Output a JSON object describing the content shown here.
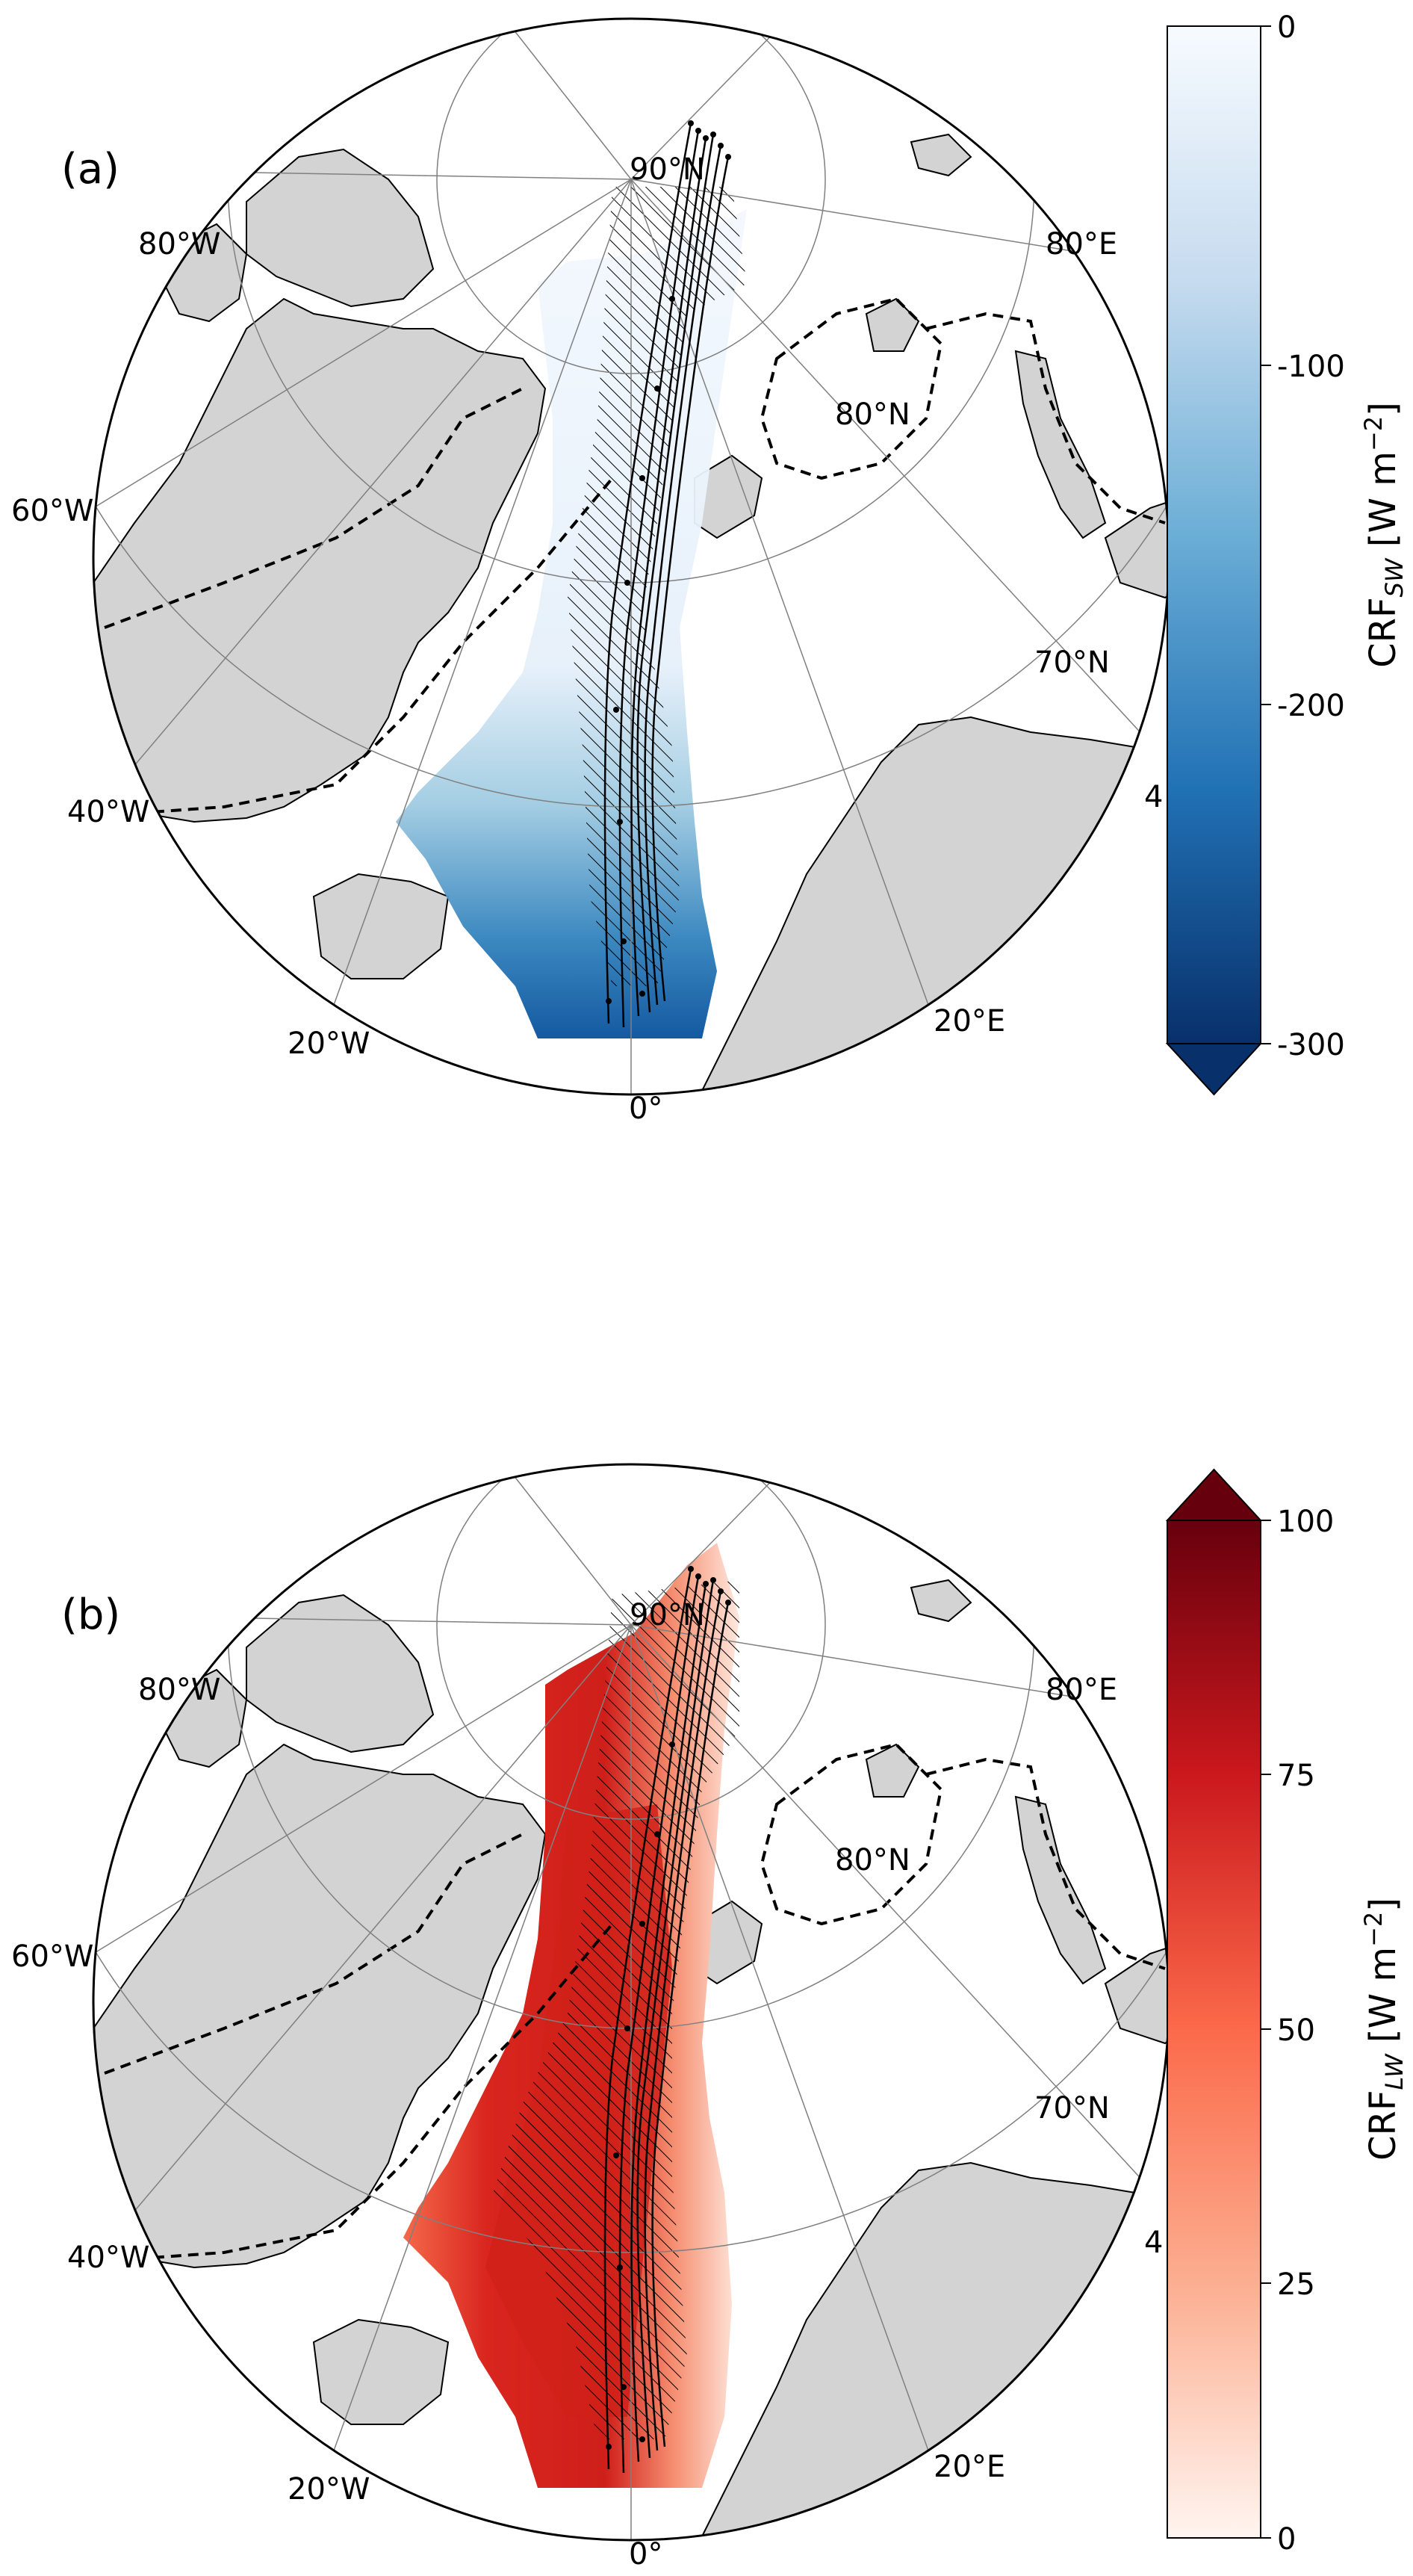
{
  "panels": [
    {
      "label": "(a)",
      "colorbar": {
        "title_base": "CRF",
        "title_sub": "SW",
        "title_unit": " [W m",
        "title_sup": "−2",
        "title_close": "]",
        "ticks": [
          "0",
          "-100",
          "-200",
          "-300"
        ],
        "extend": "min",
        "colors": [
          "#f7fbff",
          "#c6dbef",
          "#6baed6",
          "#2171b5",
          "#08306b"
        ]
      }
    },
    {
      "label": "(b)",
      "colorbar": {
        "title_base": "CRF",
        "title_sub": "LW",
        "title_unit": " [W m",
        "title_sup": "−2",
        "title_close": "]",
        "ticks": [
          "100",
          "75",
          "50",
          "25",
          "0"
        ],
        "extend": "max",
        "colors": [
          "#fff5f0",
          "#fcae91",
          "#fb6a4a",
          "#cb181d",
          "#67000d"
        ]
      }
    }
  ],
  "map_labels": {
    "north_pole": "90°N",
    "lat_80n": "80°N",
    "lat_70n": "70°N",
    "lon_80w": "80°W",
    "lon_60w": "60°W",
    "lon_40w": "40°W",
    "lon_20w": "20°W",
    "lon_0": "0°",
    "lon_20e": "20°E",
    "lon_80e": "80°E",
    "clipped_40e": "4"
  },
  "colors": {
    "land": "#d3d3d3",
    "coast": "#000000",
    "grid": "#808080"
  }
}
